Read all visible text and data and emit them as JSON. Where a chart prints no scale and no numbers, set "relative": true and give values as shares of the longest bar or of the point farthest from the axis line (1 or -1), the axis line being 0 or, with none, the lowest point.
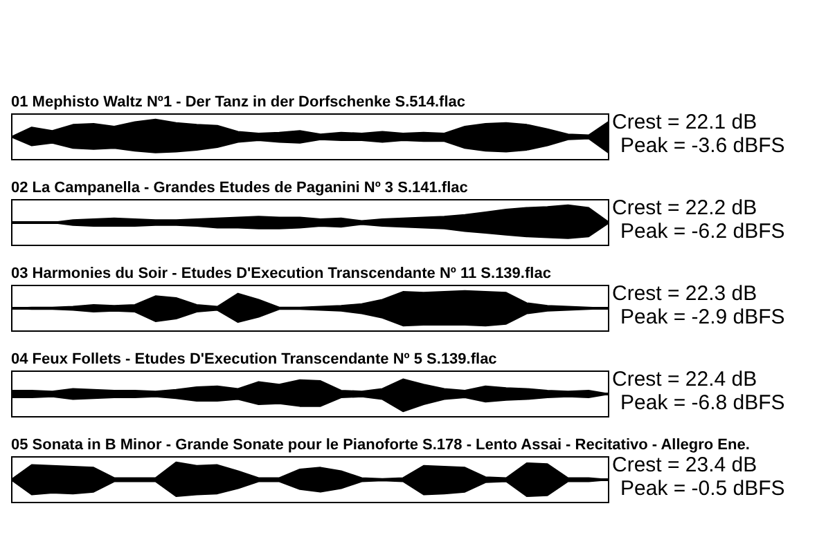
{
  "chart_data": [
    {
      "type": "area",
      "relative": true,
      "title": "01 Mephisto Waltz Nº1 -  Der Tanz in der Dorfschenke S.514.flac",
      "annotations": [
        "Crest = 22.1 dB",
        "Peak = -3.6 dBFS"
      ],
      "categories": [
        null,
        null,
        null,
        null,
        null,
        null,
        null,
        null,
        null,
        null,
        null,
        null,
        null,
        null,
        null,
        null,
        null,
        null,
        null,
        null,
        null,
        null,
        null,
        null,
        null,
        null,
        null,
        null,
        null,
        null
      ],
      "series": [
        {
          "color": "#000000",
          "values": [
            0,
            0.55,
            0.35,
            0.7,
            0.75,
            0.6,
            0.85,
            1,
            0.8,
            0.7,
            0.65,
            0.3,
            0.2,
            0.25,
            0.35,
            0.15,
            0.25,
            0.2,
            0.3,
            0.2,
            0.25,
            0.2,
            0.6,
            0.75,
            0.8,
            0.7,
            0.45,
            0.15,
            0.1,
            0.9
          ]
        },
        {
          "color": "#000000",
          "values": [
            0,
            -0.5,
            -0.35,
            -0.65,
            -0.7,
            -0.65,
            -0.8,
            -0.9,
            -0.85,
            -0.75,
            -0.6,
            -0.3,
            -0.2,
            -0.3,
            -0.35,
            -0.15,
            -0.2,
            -0.2,
            -0.3,
            -0.2,
            -0.25,
            -0.25,
            -0.65,
            -0.8,
            -0.85,
            -0.75,
            -0.5,
            -0.15,
            -0.1,
            -0.95
          ]
        }
      ]
    },
    {
      "type": "area",
      "relative": true,
      "title": "02 La Campanella - Grandes Etudes de Paganini Nº 3 S.141.flac",
      "annotations": [
        "Crest = 22.2 dB",
        "Peak = -6.2 dBFS"
      ],
      "categories": [
        null,
        null,
        null,
        null,
        null,
        null,
        null,
        null,
        null,
        null,
        null,
        null,
        null,
        null,
        null,
        null,
        null,
        null,
        null,
        null,
        null,
        null,
        null,
        null,
        null,
        null,
        null,
        null,
        null,
        null
      ],
      "series": [
        {
          "color": "#000000",
          "values": [
            0,
            0,
            0,
            0.15,
            0.2,
            0.25,
            0.2,
            0.15,
            0.15,
            0.2,
            0.25,
            0.3,
            0.35,
            0.3,
            0.3,
            0.2,
            0.25,
            0.1,
            0.2,
            0.25,
            0.3,
            0.35,
            0.45,
            0.6,
            0.75,
            0.85,
            0.9,
            1,
            0.85,
            0
          ]
        },
        {
          "color": "#000000",
          "values": [
            0,
            0,
            0,
            -0.15,
            -0.2,
            -0.2,
            -0.2,
            -0.15,
            -0.15,
            -0.2,
            -0.3,
            -0.3,
            -0.35,
            -0.35,
            -0.3,
            -0.2,
            -0.25,
            -0.1,
            -0.2,
            -0.25,
            -0.3,
            -0.35,
            -0.5,
            -0.6,
            -0.7,
            -0.8,
            -0.85,
            -0.9,
            -0.8,
            0
          ]
        }
      ]
    },
    {
      "type": "area",
      "relative": true,
      "title": "03 Harmonies du Soir - Etudes D'Execution Transcendante Nº 11 S.139.flac",
      "annotations": [
        "Crest = 22.3 dB",
        "Peak = -2.9 dBFS"
      ],
      "categories": [
        null,
        null,
        null,
        null,
        null,
        null,
        null,
        null,
        null,
        null,
        null,
        null,
        null,
        null,
        null,
        null,
        null,
        null,
        null,
        null,
        null,
        null,
        null,
        null,
        null,
        null,
        null,
        null,
        null,
        null
      ],
      "series": [
        {
          "color": "#000000",
          "values": [
            0,
            0.05,
            0.05,
            0.1,
            0.2,
            0.15,
            0.2,
            0.7,
            0.6,
            0.2,
            0.1,
            0.85,
            0.5,
            0.05,
            0.05,
            0.1,
            0.15,
            0.25,
            0.5,
            0.95,
            0.9,
            0.95,
            1,
            0.95,
            0.9,
            0.3,
            0.15,
            0.1,
            0.05,
            0
          ]
        },
        {
          "color": "#000000",
          "values": [
            0,
            -0.05,
            -0.05,
            -0.1,
            -0.2,
            -0.15,
            -0.2,
            -0.75,
            -0.6,
            -0.2,
            -0.1,
            -0.8,
            -0.5,
            -0.05,
            -0.05,
            -0.1,
            -0.15,
            -0.3,
            -0.55,
            -1,
            -0.95,
            -0.95,
            -0.95,
            -1,
            -0.9,
            -0.3,
            -0.15,
            -0.1,
            -0.05,
            0
          ]
        }
      ]
    },
    {
      "type": "area",
      "relative": true,
      "title": "04 Feux Follets - Etudes D'Execution Transcendante Nº 5 S.139.flac",
      "annotations": [
        "Crest = 22.4 dB",
        "Peak = -6.8 dBFS"
      ],
      "categories": [
        null,
        null,
        null,
        null,
        null,
        null,
        null,
        null,
        null,
        null,
        null,
        null,
        null,
        null,
        null,
        null,
        null,
        null,
        null,
        null,
        null,
        null,
        null,
        null,
        null,
        null,
        null,
        null,
        null,
        null
      ],
      "series": [
        {
          "color": "#000000",
          "values": [
            0.2,
            0.2,
            0.15,
            0.3,
            0.25,
            0.2,
            0.2,
            0.15,
            0.25,
            0.4,
            0.45,
            0.3,
            0.7,
            0.55,
            0.8,
            0.75,
            0.2,
            0.15,
            0.3,
            0.85,
            0.55,
            0.3,
            0.2,
            0.45,
            0.35,
            0.3,
            0.2,
            0.15,
            0.2,
            0
          ]
        },
        {
          "color": "#000000",
          "values": [
            -0.2,
            -0.2,
            -0.15,
            -0.3,
            -0.25,
            -0.2,
            -0.2,
            -0.15,
            -0.25,
            -0.4,
            -0.4,
            -0.3,
            -0.6,
            -0.55,
            -0.7,
            -0.7,
            -0.2,
            -0.15,
            -0.3,
            -1,
            -0.6,
            -0.3,
            -0.2,
            -0.45,
            -0.35,
            -0.3,
            -0.2,
            -0.15,
            -0.2,
            0
          ]
        }
      ]
    },
    {
      "type": "area",
      "relative": true,
      "title": "05 Sonata in B Minor - Grande Sonate pour le Pianoforte S.178 - Lento Assai - Recitativo - Allegro Ene.",
      "annotations": [
        "Crest = 23.4 dB",
        "Peak = -0.5 dBFS"
      ],
      "categories": [
        null,
        null,
        null,
        null,
        null,
        null,
        null,
        null,
        null,
        null,
        null,
        null,
        null,
        null,
        null,
        null,
        null,
        null,
        null,
        null,
        null,
        null,
        null,
        null,
        null,
        null,
        null,
        null,
        null,
        null
      ],
      "series": [
        {
          "color": "#000000",
          "values": [
            0,
            0.85,
            0.8,
            0.75,
            0.7,
            0.1,
            0.1,
            0.1,
            1,
            0.8,
            0.85,
            0.5,
            0.1,
            0.1,
            0.6,
            0.7,
            0.5,
            0.1,
            0.05,
            0.1,
            0.8,
            0.75,
            0.7,
            0.15,
            0.1,
            0.95,
            0.9,
            0.1,
            0.1,
            0
          ]
        },
        {
          "color": "#000000",
          "values": [
            0,
            -0.85,
            -0.75,
            -0.8,
            -0.7,
            -0.1,
            -0.1,
            -0.1,
            -0.95,
            -0.85,
            -0.8,
            -0.5,
            -0.1,
            -0.1,
            -0.55,
            -0.7,
            -0.5,
            -0.1,
            -0.05,
            -0.1,
            -0.85,
            -0.8,
            -0.7,
            -0.15,
            -0.1,
            -0.95,
            -0.9,
            -0.1,
            -0.1,
            0
          ]
        }
      ]
    }
  ]
}
